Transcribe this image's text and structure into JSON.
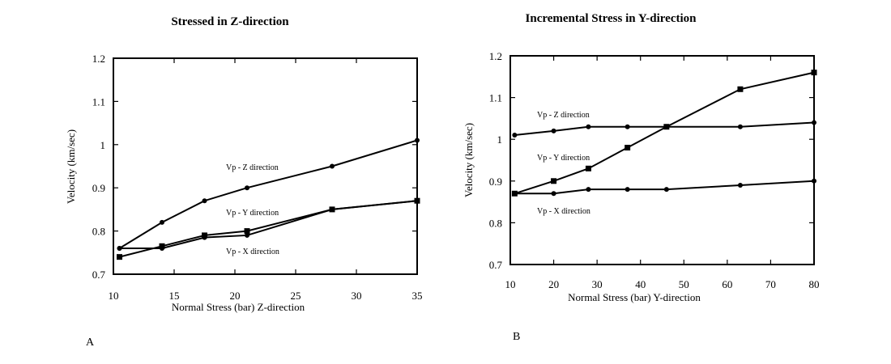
{
  "chart_data": [
    {
      "type": "line",
      "title": "Stressed in Z-direction",
      "xlabel": "Normal Stress (bar) Z-direction",
      "ylabel": "Velocity (km/sec)",
      "xlim": [
        10,
        35
      ],
      "ylim": [
        0.7,
        1.2
      ],
      "x_ticks": [
        10,
        15,
        20,
        25,
        30,
        35
      ],
      "y_ticks": [
        0.7,
        0.8,
        0.9,
        1,
        1.1,
        1.2
      ],
      "panel_label": "A",
      "grid": false,
      "series": [
        {
          "name": "Vp - Z direction",
          "marker": "dot",
          "x": [
            10.5,
            14,
            17.5,
            21,
            28,
            35
          ],
          "y": [
            0.76,
            0.82,
            0.87,
            0.9,
            0.95,
            1.01
          ]
        },
        {
          "name": "Vp - Y direction",
          "marker": "square",
          "x": [
            10.5,
            14,
            17.5,
            21,
            28,
            35
          ],
          "y": [
            0.74,
            0.765,
            0.79,
            0.8,
            0.85,
            0.87
          ]
        },
        {
          "name": "Vp - X direction",
          "marker": "dot",
          "x": [
            10.5,
            14,
            17.5,
            21,
            28,
            35
          ],
          "y": [
            0.76,
            0.76,
            0.785,
            0.79,
            0.85,
            0.87
          ]
        }
      ]
    },
    {
      "type": "line",
      "title": "Incremental Stress in Y-direction",
      "xlabel": "Normal Stress (bar) Y-direction",
      "ylabel": "Velocity (km/sec)",
      "xlim": [
        10,
        80
      ],
      "ylim": [
        0.7,
        1.2
      ],
      "x_ticks": [
        10,
        20,
        30,
        40,
        50,
        60,
        70,
        80
      ],
      "y_ticks": [
        0.7,
        0.8,
        0.9,
        1,
        1.1,
        1.2
      ],
      "panel_label": "B",
      "grid": false,
      "series": [
        {
          "name": "Vp - Z direction",
          "marker": "dot",
          "x": [
            11,
            20,
            28,
            37,
            46,
            63,
            80
          ],
          "y": [
            1.01,
            1.02,
            1.03,
            1.03,
            1.03,
            1.03,
            1.04
          ]
        },
        {
          "name": "Vp - Y direction",
          "marker": "square",
          "x": [
            11,
            20,
            28,
            37,
            46,
            63,
            80
          ],
          "y": [
            0.87,
            0.9,
            0.93,
            0.98,
            1.03,
            1.12,
            1.16
          ]
        },
        {
          "name": "Vp - X direction",
          "marker": "dot",
          "x": [
            11,
            20,
            28,
            37,
            46,
            63,
            80
          ],
          "y": [
            0.87,
            0.87,
            0.88,
            0.88,
            0.88,
            0.89,
            0.9
          ]
        }
      ]
    }
  ]
}
